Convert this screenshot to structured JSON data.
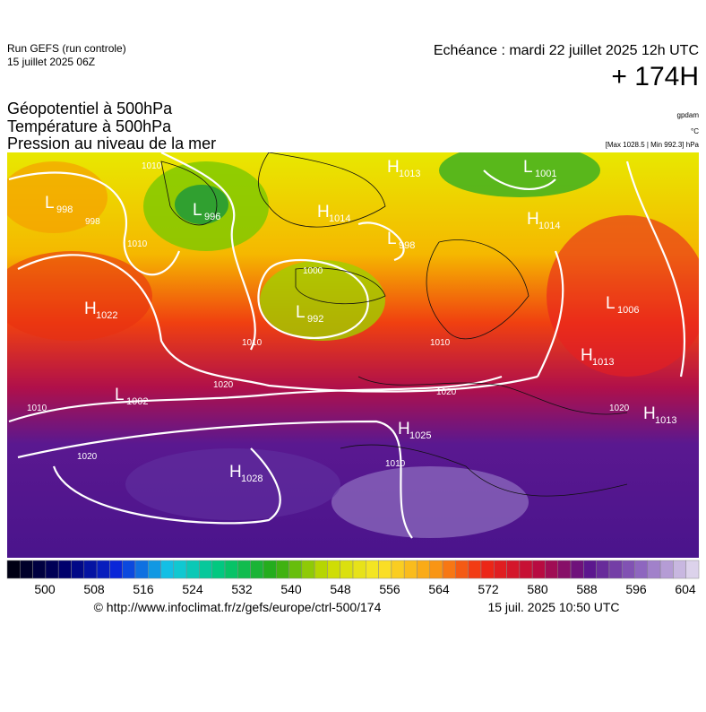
{
  "header": {
    "run": "Run GEFS (run controle)",
    "run_date": "15 juillet 2025 06Z",
    "echeance": "Echéance : mardi 22 juillet 2025 12h UTC",
    "lead": "+ 174H"
  },
  "titles": [
    "Géopotentiel à 500hPa",
    "Température à 500hPa",
    "Pression au niveau de la mer"
  ],
  "units": [
    "gpdam",
    "°C",
    "[Max 1028.5 | Min 992.3] hPa"
  ],
  "pressure_centers": [
    {
      "type": "L",
      "value": 998
    },
    {
      "type": "L",
      "value": 996
    },
    {
      "type": "H",
      "value": 1013
    },
    {
      "type": "L",
      "value": 1001
    },
    {
      "type": "H",
      "value": 1014
    },
    {
      "type": "L",
      "value": 998
    },
    {
      "type": "H",
      "value": 1014
    },
    {
      "type": "H",
      "value": 1022
    },
    {
      "type": "L",
      "value": 992
    },
    {
      "type": "L",
      "value": 1006
    },
    {
      "type": "H",
      "value": 1013
    },
    {
      "type": "L",
      "value": 1002
    },
    {
      "type": "H",
      "value": 1025
    },
    {
      "type": "H",
      "value": 1013
    },
    {
      "type": "H",
      "value": 1028
    }
  ],
  "isobar_labels": [
    1010,
    998,
    1010,
    1000,
    1010,
    1010,
    1020,
    1010,
    1020,
    1020,
    1010,
    1020
  ],
  "colorbar_ticks": [
    500,
    508,
    516,
    524,
    532,
    540,
    548,
    556,
    564,
    572,
    580,
    588,
    596,
    604
  ],
  "footer": {
    "url": "© http://www.infoclimat.fr/z/gefs/europe/ctrl-500/174",
    "timestamp": "15 juil. 2025 10:50 UTC"
  }
}
